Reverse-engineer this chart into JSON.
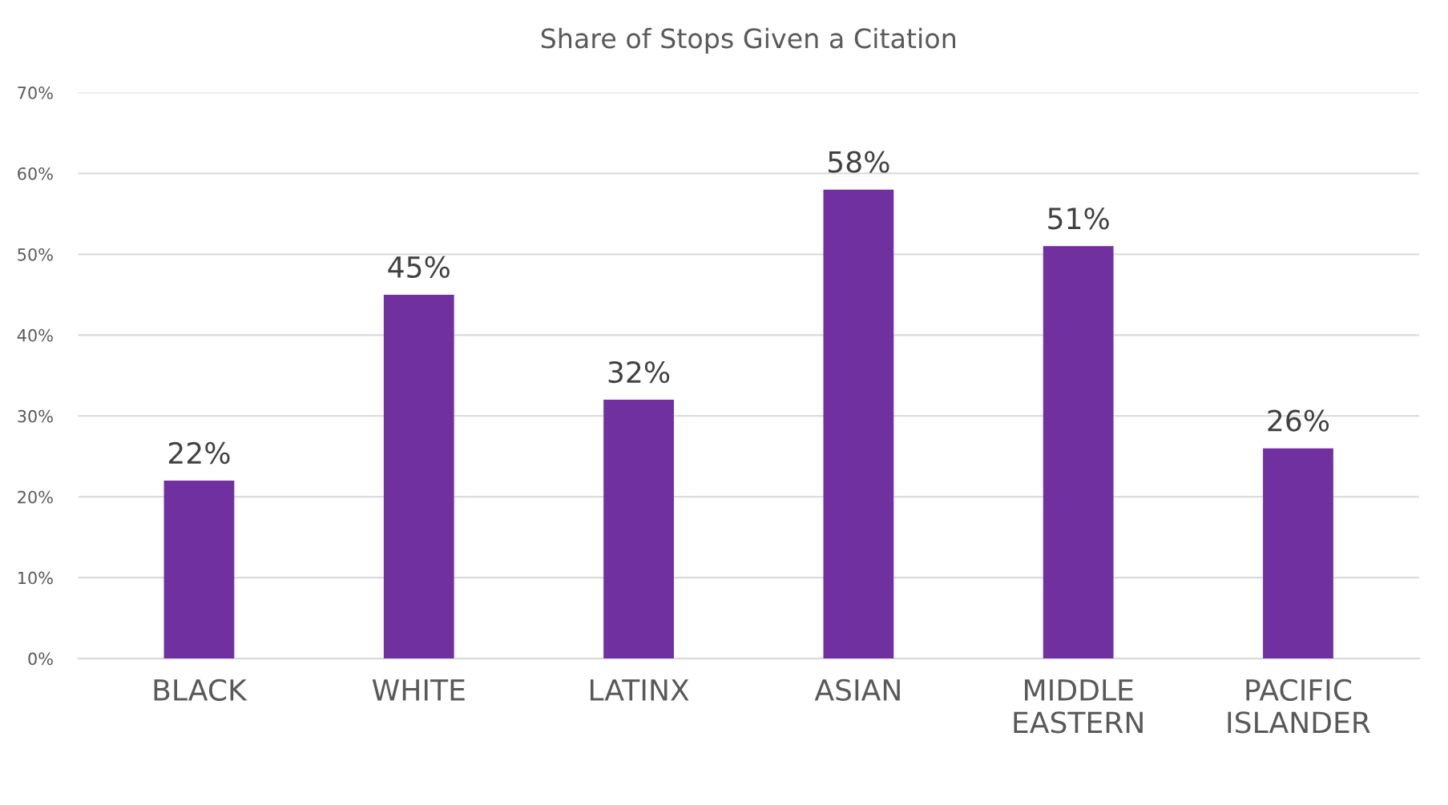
{
  "chart_data": {
    "type": "bar",
    "title": "Share of Stops Given a Citation",
    "categories": [
      "BLACK",
      "WHITE",
      "LATINX",
      "ASIAN",
      "MIDDLE\nEASTERN",
      "PACIFIC\nISLANDER"
    ],
    "values": [
      22,
      45,
      32,
      58,
      51,
      26
    ],
    "value_labels": [
      "22%",
      "45%",
      "32%",
      "58%",
      "51%",
      "26%"
    ],
    "color": "#7030a0",
    "ylim": [
      0,
      70
    ],
    "yticks": [
      {
        "value": 0,
        "label": "0%"
      },
      {
        "value": 10,
        "label": "10%"
      },
      {
        "value": 20,
        "label": "20%"
      },
      {
        "value": 30,
        "label": "30%"
      },
      {
        "value": 40,
        "label": "40%"
      },
      {
        "value": 50,
        "label": "50%"
      },
      {
        "value": 60,
        "label": "60%"
      },
      {
        "value": 70,
        "label": "70%"
      }
    ],
    "grid": "y"
  }
}
